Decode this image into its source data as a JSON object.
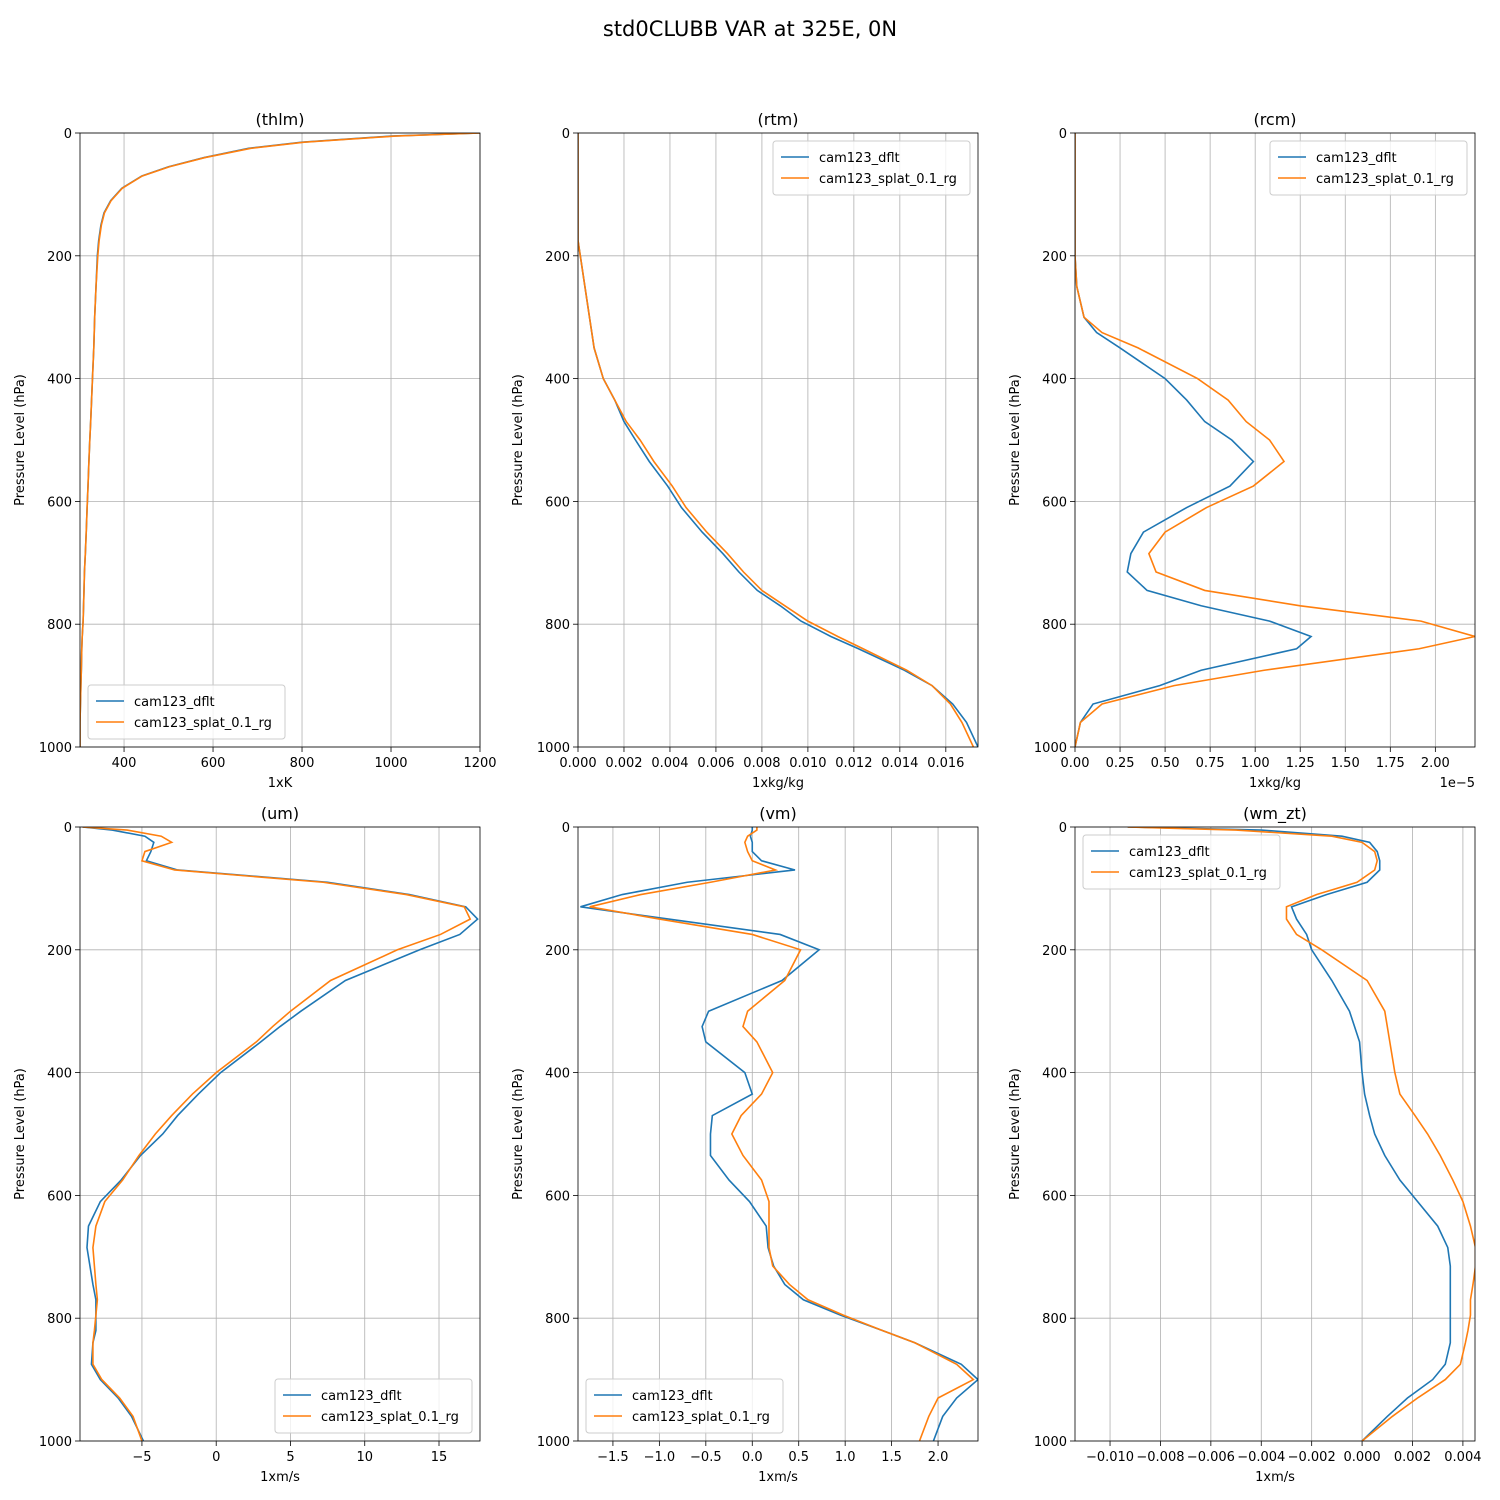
{
  "title": "std0CLUBB VAR at 325E, 0N",
  "chart_data": [
    {
      "type": "line",
      "title": "(thlm)",
      "x_label": "1xK",
      "y_label": "Pressure Level (hPa)",
      "xlim": [
        301,
        1200
      ],
      "xticks": [
        400,
        600,
        800,
        1000,
        1200
      ],
      "ylim": [
        1000,
        0
      ],
      "yticks": [
        0,
        200,
        400,
        600,
        800,
        1000
      ],
      "grid": true,
      "legend": "lower left",
      "y": [
        0,
        5,
        15,
        25,
        40,
        55,
        70,
        90,
        110,
        130,
        150,
        175,
        200,
        250,
        300,
        325,
        350,
        400,
        435,
        470,
        500,
        535,
        575,
        610,
        650,
        685,
        715,
        745,
        770,
        795,
        820,
        840,
        875,
        900,
        930,
        960,
        1000
      ],
      "series": [
        {
          "name": "cam123_dflt",
          "color": "#1f77b4",
          "values": [
            1200,
            1000,
            800,
            680,
            580,
            500,
            440,
            395,
            370,
            355,
            348,
            343,
            340,
            337,
            334,
            333,
            332,
            329,
            327,
            325,
            323,
            321,
            319,
            317,
            315,
            313,
            311,
            310,
            309,
            308,
            306,
            305,
            304,
            303,
            302,
            301,
            301
          ]
        },
        {
          "name": "cam123_splat_0.1_rg",
          "color": "#ff7f0e",
          "values": [
            1200,
            1010,
            805,
            685,
            582,
            502,
            441,
            396,
            371,
            356,
            349,
            344,
            341,
            337,
            334,
            333,
            332,
            329,
            327,
            325,
            323,
            321,
            319,
            317,
            315,
            313,
            311,
            310,
            309,
            308,
            306,
            305,
            304,
            303,
            302,
            301,
            301
          ]
        }
      ]
    },
    {
      "type": "line",
      "title": "(rtm)",
      "x_label": "1xkg/kg",
      "y_label": "Pressure Level (hPa)",
      "xlim": [
        0,
        0.0174
      ],
      "xticks": [
        {
          "value": 0,
          "label": "0.000"
        },
        {
          "value": 0.002,
          "label": "0.002"
        },
        {
          "value": 0.004,
          "label": "0.004"
        },
        {
          "value": 0.006,
          "label": "0.006"
        },
        {
          "value": 0.008,
          "label": "0.008"
        },
        {
          "value": 0.01,
          "label": "0.010"
        },
        {
          "value": 0.012,
          "label": "0.012"
        },
        {
          "value": 0.014,
          "label": "0.014"
        },
        {
          "value": 0.016,
          "label": "0.016"
        }
      ],
      "ylim": [
        1000,
        0
      ],
      "yticks": [
        0,
        200,
        400,
        600,
        800,
        1000
      ],
      "grid": true,
      "legend": "upper right",
      "y": [
        0,
        5,
        15,
        25,
        40,
        55,
        70,
        90,
        110,
        130,
        150,
        175,
        200,
        250,
        300,
        325,
        350,
        400,
        435,
        470,
        500,
        535,
        575,
        610,
        650,
        685,
        715,
        745,
        770,
        795,
        820,
        840,
        875,
        900,
        930,
        960,
        1000
      ],
      "series": [
        {
          "name": "cam123_dflt",
          "color": "#1f77b4",
          "values": [
            0,
            0,
            0,
            0,
            0,
            0,
            0,
            0,
            0,
            0,
            0,
            0,
            0.0001,
            0.0003,
            0.0005,
            0.0006,
            0.0007,
            0.0011,
            0.0016,
            0.002,
            0.0025,
            0.0031,
            0.0039,
            0.0045,
            0.0054,
            0.0063,
            0.007,
            0.0078,
            0.0088,
            0.0097,
            0.011,
            0.0122,
            0.0142,
            0.0154,
            0.0163,
            0.0169,
            0.0174
          ]
        },
        {
          "name": "cam123_splat_0.1_rg",
          "color": "#ff7f0e",
          "values": [
            0,
            0,
            0,
            0,
            0,
            0,
            0,
            0,
            0,
            0,
            0,
            0,
            0.0001,
            0.0003,
            0.0005,
            0.0006,
            0.0007,
            0.0011,
            0.0016,
            0.0021,
            0.0027,
            0.0033,
            0.0041,
            0.0047,
            0.0056,
            0.0065,
            0.0072,
            0.008,
            0.009,
            0.01,
            0.0113,
            0.0124,
            0.0143,
            0.0154,
            0.0162,
            0.0167,
            0.0172
          ]
        }
      ]
    },
    {
      "type": "line",
      "title": "(rcm)",
      "x_label": "1xkg/kg",
      "x_offset_label": "1e−5",
      "y_label": "Pressure Level (hPa)",
      "xlim": [
        0,
        2.22
      ],
      "xticks": [
        {
          "value": 0,
          "label": "0.00"
        },
        0.25,
        {
          "value": 0.5,
          "label": "0.50"
        },
        0.75,
        {
          "value": 1,
          "label": "1.00"
        },
        1.25,
        {
          "value": 1.5,
          "label": "1.50"
        },
        1.75,
        {
          "value": 2,
          "label": "2.00"
        }
      ],
      "ylim": [
        1000,
        0
      ],
      "yticks": [
        0,
        200,
        400,
        600,
        800,
        1000
      ],
      "grid": true,
      "legend": "upper right",
      "y": [
        0,
        5,
        15,
        25,
        40,
        55,
        70,
        90,
        110,
        130,
        150,
        175,
        200,
        250,
        300,
        325,
        350,
        400,
        435,
        470,
        500,
        535,
        575,
        610,
        650,
        685,
        715,
        745,
        770,
        795,
        820,
        840,
        875,
        900,
        930,
        960,
        1000
      ],
      "series": [
        {
          "name": "cam123_dflt",
          "color": "#1f77b4",
          "values": [
            0,
            0,
            0,
            0,
            0,
            0,
            0,
            0,
            0,
            0,
            0,
            0,
            0,
            0.01,
            0.05,
            0.12,
            0.25,
            0.5,
            0.62,
            0.72,
            0.87,
            0.99,
            0.86,
            0.62,
            0.38,
            0.31,
            0.29,
            0.4,
            0.7,
            1.08,
            1.31,
            1.23,
            0.7,
            0.47,
            0.1,
            0.03,
            0
          ]
        },
        {
          "name": "cam123_splat_0.1_rg",
          "color": "#ff7f0e",
          "values": [
            0,
            0,
            0,
            0,
            0,
            0,
            0,
            0,
            0,
            0,
            0,
            0,
            0,
            0.01,
            0.05,
            0.15,
            0.35,
            0.68,
            0.85,
            0.95,
            1.08,
            1.16,
            0.99,
            0.73,
            0.5,
            0.41,
            0.45,
            0.72,
            1.25,
            1.92,
            2.22,
            1.91,
            1.05,
            0.55,
            0.15,
            0.03,
            0
          ]
        }
      ]
    },
    {
      "type": "line",
      "title": "(um)",
      "x_label": "1xm/s",
      "y_label": "Pressure Level (hPa)",
      "xlim": [
        -9.17,
        17.76
      ],
      "xticks": [
        {
          "value": -5,
          "label": "−5"
        },
        0,
        5,
        10,
        15
      ],
      "ylim": [
        1000,
        0
      ],
      "yticks": [
        0,
        200,
        400,
        600,
        800,
        1000
      ],
      "grid": true,
      "legend": "lower right",
      "y": [
        0,
        5,
        15,
        25,
        40,
        55,
        70,
        90,
        110,
        130,
        150,
        175,
        200,
        250,
        300,
        325,
        350,
        400,
        435,
        470,
        500,
        535,
        575,
        610,
        650,
        685,
        715,
        745,
        770,
        795,
        820,
        840,
        875,
        900,
        930,
        960,
        1000
      ],
      "series": [
        {
          "name": "cam123_dflt",
          "color": "#1f77b4",
          "values": [
            -9.0,
            -7.0,
            -4.8,
            -4.2,
            -4.4,
            -4.7,
            -2.6,
            7.5,
            13.0,
            16.8,
            17.6,
            16.4,
            13.7,
            8.7,
            5.7,
            4.3,
            3.0,
            0.3,
            -1.2,
            -2.6,
            -3.6,
            -5.1,
            -6.4,
            -7.8,
            -8.6,
            -8.7,
            -8.5,
            -8.3,
            -8.1,
            -8.1,
            -8.1,
            -8.3,
            -8.4,
            -7.8,
            -6.6,
            -5.7,
            -4.9
          ]
        },
        {
          "name": "cam123_splat_0.1_rg",
          "color": "#ff7f0e",
          "values": [
            -9.0,
            -6.0,
            -3.7,
            -3.0,
            -4.8,
            -5.0,
            -2.8,
            7.2,
            12.8,
            16.7,
            17.1,
            15.1,
            12.2,
            7.7,
            5.0,
            3.8,
            2.7,
            0.0,
            -1.6,
            -3.0,
            -4.1,
            -5.2,
            -6.3,
            -7.5,
            -8.1,
            -8.3,
            -8.2,
            -8.1,
            -8.0,
            -8.1,
            -8.2,
            -8.3,
            -8.3,
            -7.7,
            -6.5,
            -5.6,
            -5.0
          ]
        }
      ]
    },
    {
      "type": "line",
      "title": "(vm)",
      "x_label": "1xm/s",
      "y_label": "Pressure Level (hPa)",
      "xlim": [
        -1.876,
        2.43
      ],
      "xticks": [
        {
          "value": -1.5,
          "label": "−1.5"
        },
        {
          "value": -1,
          "label": "−1.0"
        },
        {
          "value": -0.5,
          "label": "−0.5"
        },
        {
          "value": 0,
          "label": "0.0"
        },
        0.5,
        {
          "value": 1,
          "label": "1.0"
        },
        1.5,
        {
          "value": 2,
          "label": "2.0"
        }
      ],
      "ylim": [
        1000,
        0
      ],
      "yticks": [
        0,
        200,
        400,
        600,
        800,
        1000
      ],
      "grid": true,
      "legend": "lower left",
      "y": [
        0,
        5,
        15,
        25,
        40,
        55,
        70,
        90,
        110,
        130,
        150,
        175,
        200,
        250,
        300,
        325,
        350,
        400,
        435,
        470,
        500,
        535,
        575,
        610,
        650,
        685,
        715,
        745,
        770,
        795,
        820,
        840,
        875,
        900,
        930,
        960,
        1000
      ],
      "series": [
        {
          "name": "cam123_dflt",
          "color": "#1f77b4",
          "values": [
            0.0,
            0.0,
            -0.02,
            0.0,
            0.0,
            0.1,
            0.46,
            -0.7,
            -1.4,
            -1.85,
            -0.9,
            0.3,
            0.72,
            0.32,
            -0.47,
            -0.54,
            -0.5,
            -0.08,
            0.0,
            -0.43,
            -0.45,
            -0.45,
            -0.25,
            -0.03,
            0.15,
            0.17,
            0.23,
            0.35,
            0.55,
            0.95,
            1.4,
            1.75,
            2.25,
            2.43,
            2.2,
            2.05,
            1.95
          ]
        },
        {
          "name": "cam123_splat_0.1_rg",
          "color": "#ff7f0e",
          "values": [
            0.05,
            0.05,
            -0.05,
            -0.08,
            -0.05,
            0.0,
            0.25,
            -0.45,
            -1.2,
            -1.75,
            -1.0,
            0.0,
            0.52,
            0.35,
            -0.05,
            -0.1,
            0.05,
            0.22,
            0.1,
            -0.12,
            -0.22,
            -0.1,
            0.1,
            0.18,
            0.18,
            0.18,
            0.22,
            0.4,
            0.6,
            0.98,
            1.4,
            1.75,
            2.2,
            2.38,
            2.0,
            1.9,
            1.8
          ]
        }
      ]
    },
    {
      "type": "line",
      "title": "(wm_zt)",
      "x_label": "1xm/s",
      "y_label": "Pressure Level (hPa)",
      "xlim": [
        -0.01139,
        0.00448
      ],
      "xticks": [
        {
          "value": -0.01,
          "label": "−0.010"
        },
        {
          "value": -0.008,
          "label": "−0.008"
        },
        {
          "value": -0.006,
          "label": "−0.006"
        },
        {
          "value": -0.004,
          "label": "−0.004"
        },
        {
          "value": -0.002,
          "label": "−0.002"
        },
        {
          "value": 0,
          "label": "0.000"
        },
        0.002,
        0.004
      ],
      "ylim": [
        1000,
        0
      ],
      "yticks": [
        0,
        200,
        400,
        600,
        800,
        1000
      ],
      "grid": true,
      "legend": "upper left",
      "y": [
        0,
        5,
        15,
        25,
        40,
        55,
        70,
        90,
        110,
        130,
        150,
        175,
        200,
        250,
        300,
        325,
        350,
        400,
        435,
        470,
        500,
        535,
        575,
        610,
        650,
        685,
        715,
        745,
        770,
        795,
        820,
        840,
        875,
        900,
        930,
        960,
        1000
      ],
      "series": [
        {
          "name": "cam123_dflt",
          "color": "#1f77b4",
          "values": [
            -0.0093,
            -0.004,
            -0.0008,
            0.0003,
            0.0006,
            0.0007,
            0.0007,
            0.0002,
            -0.0014,
            -0.0028,
            -0.0026,
            -0.0022,
            -0.002,
            -0.0012,
            -0.0005,
            -0.0003,
            -0.0001,
            0.0,
            0.0001,
            0.0003,
            0.0005,
            0.0009,
            0.0015,
            0.0022,
            0.003,
            0.0034,
            0.0035,
            0.0035,
            0.0035,
            0.0035,
            0.0035,
            0.0035,
            0.0033,
            0.0028,
            0.0018,
            0.001,
            0.0
          ]
        },
        {
          "name": "cam123_splat_0.1_rg",
          "color": "#ff7f0e",
          "values": [
            -0.0093,
            -0.005,
            -0.0012,
            0.0,
            0.0005,
            0.0006,
            0.0005,
            -0.0002,
            -0.0018,
            -0.003,
            -0.003,
            -0.0026,
            -0.0016,
            0.0002,
            0.0009,
            0.001,
            0.0011,
            0.0013,
            0.0015,
            0.0021,
            0.0026,
            0.0031,
            0.0036,
            0.004,
            0.0043,
            0.0045,
            0.0045,
            0.0044,
            0.0043,
            0.0043,
            0.0042,
            0.0041,
            0.0039,
            0.0033,
            0.0022,
            0.0012,
            0.0
          ]
        }
      ]
    }
  ]
}
